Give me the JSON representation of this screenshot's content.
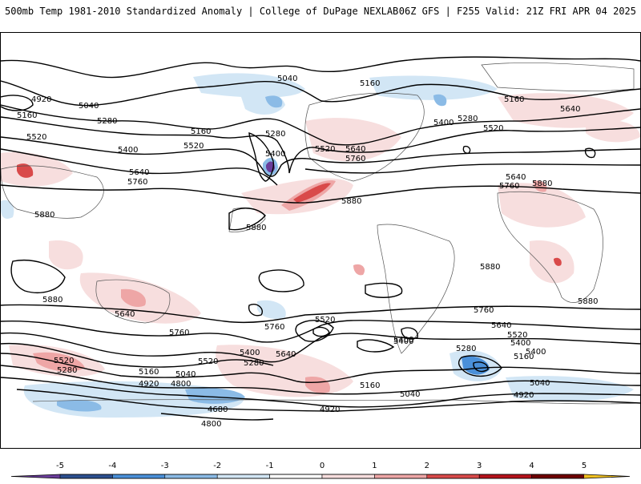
{
  "header": {
    "title_left": "500mb Temp 1981-2010 Standardized Anomaly | College of DuPage NEXLAB",
    "title_right": "06Z GFS | F255 Valid: 21Z FRI APR 04 2025"
  },
  "colors": {
    "neg5": "#6a3d9a",
    "neg4": "#2c4f8f",
    "neg3": "#4a90d9",
    "neg2": "#8bbbe6",
    "neg1": "#d2e6f5",
    "pos1": "#f7dede",
    "pos2": "#eea6a6",
    "pos3": "#d94a4a",
    "pos4": "#b5121b",
    "pos5": "#6e0000",
    "above": "#f0c020"
  },
  "colorbar": {
    "ticks": [
      "-5",
      "-4",
      "-3",
      "-2",
      "-1",
      "0",
      "1",
      "2",
      "3",
      "4",
      "5"
    ]
  },
  "contour_labels": [
    "5040",
    "5160",
    "4920",
    "5040",
    "5160",
    "5280",
    "5520",
    "5400",
    "5160",
    "5520",
    "5640",
    "5760",
    "5280",
    "5400",
    "5880",
    "5880",
    "5520",
    "5640",
    "5760",
    "5400",
    "5280",
    "5520",
    "5160",
    "5640",
    "5640",
    "5760",
    "5880",
    "5880",
    "5880",
    "5880",
    "5880",
    "5640",
    "5760",
    "5760",
    "5520",
    "5400",
    "5640",
    "5520",
    "5400",
    "5280",
    "5160",
    "5040",
    "4920",
    "4800",
    "4680",
    "4800",
    "4920",
    "5160",
    "5040",
    "5400",
    "5760",
    "5640",
    "5520",
    "5400",
    "5280",
    "5160",
    "5040",
    "4920",
    "5280",
    "5520",
    "5400"
  ]
}
